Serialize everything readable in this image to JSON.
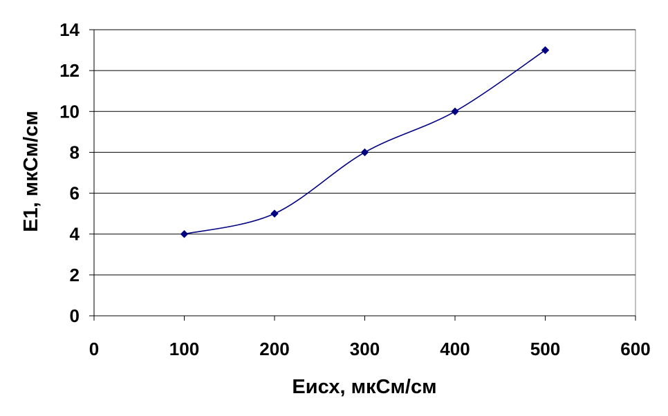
{
  "chart_data": {
    "type": "line",
    "title": "",
    "xlabel": "Еисх, мкСм/см",
    "ylabel": "E1, мкСм/см",
    "xlim": [
      0,
      600
    ],
    "ylim": [
      0,
      14
    ],
    "xticks": [
      0,
      100,
      200,
      300,
      400,
      500,
      600
    ],
    "yticks": [
      0,
      2,
      4,
      6,
      8,
      10,
      12,
      14
    ],
    "grid": "horizontal",
    "legend": "none",
    "smooth": true,
    "series": [
      {
        "x": [
          100,
          200,
          300,
          400,
          500
        ],
        "y": [
          4,
          5,
          8,
          10,
          13
        ],
        "color": "#000080",
        "marker": "diamond"
      }
    ]
  }
}
